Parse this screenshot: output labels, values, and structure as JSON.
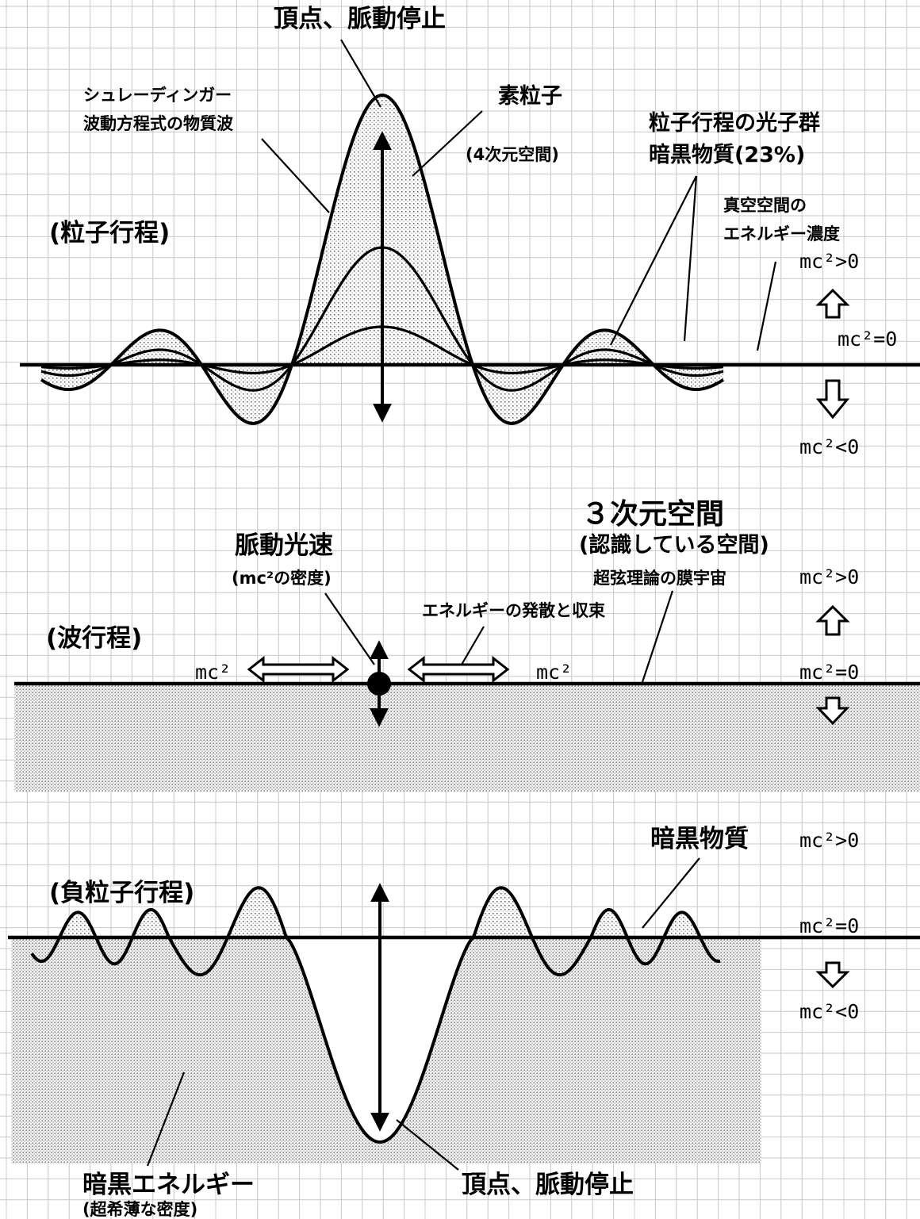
{
  "top": {
    "peak_label": "頂点、脈動停止",
    "schrodinger_line1": "シュレーディンガー",
    "schrodinger_line2": "波動方程式の物質波",
    "elementary_particle": "素粒子",
    "four_d_space": "(4次元空間)",
    "photon_group": "粒子行程の光子群",
    "dark_matter_23": "暗黒物質(23%)",
    "vacuum_line1": "真空空間の",
    "vacuum_line2": "エネルギー濃度",
    "stage_label": "(粒子行程)",
    "mc_pos": "mc²>0",
    "mc_zero": "mc²=0",
    "mc_neg": "mc²<0"
  },
  "middle": {
    "three_d_space": "３次元空間",
    "recognized_space": "(認識している空間)",
    "brane_universe": "超弦理論の膜宇宙",
    "pulse_light_speed": "脈動光速",
    "mc2_density": "(mc²の密度)",
    "energy_spread": "エネルギーの発散と収束",
    "stage_label": "(波行程)",
    "mc2_left": "mc²",
    "mc2_right": "mc²",
    "mc_pos": "mc²>0",
    "mc_zero": "mc²=0"
  },
  "bottom": {
    "dark_matter": "暗黒物質",
    "stage_label": "(負粒子行程)",
    "mc_pos": "mc²>0",
    "mc_zero": "mc²=0",
    "mc_neg": "mc²<0",
    "dark_energy": "暗黒エネルギー",
    "ultra_thin_density": "(超希薄な密度)",
    "peak_label": "頂点、脈動停止"
  },
  "colors": {
    "grid": "#c8c8c8",
    "ink": "#000000",
    "dot_fill": "#9a9a9a",
    "background": "#ffffff"
  }
}
